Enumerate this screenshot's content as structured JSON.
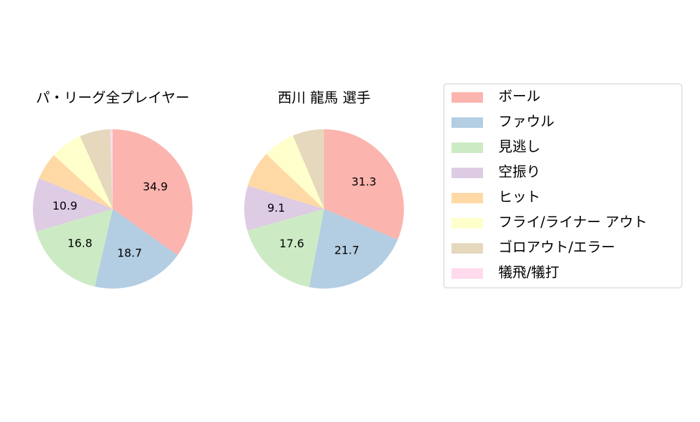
{
  "chart_data": [
    {
      "type": "pie",
      "title": "パ・リーグ全プレイヤー",
      "values": [
        34.9,
        18.7,
        16.8,
        10.9,
        5.5,
        6.5,
        6.2,
        0.5
      ]
    },
    {
      "type": "pie",
      "title": "西川 龍馬  選手",
      "values": [
        31.3,
        21.7,
        17.6,
        9.1,
        7.4,
        6.5,
        6.4,
        0
      ]
    }
  ],
  "legend": {
    "labels": [
      "ボール",
      "ファウル",
      "見逃し",
      "空振り",
      "ヒット",
      "フライ/ライナー アウト",
      "ゴロアウト/エラー",
      "犠飛/犠打"
    ],
    "colors": [
      "#fbb4ae",
      "#b3cde3",
      "#ccebc5",
      "#decbe4",
      "#fed9a6",
      "#ffffcc",
      "#e5d8bd",
      "#fddaec"
    ]
  }
}
